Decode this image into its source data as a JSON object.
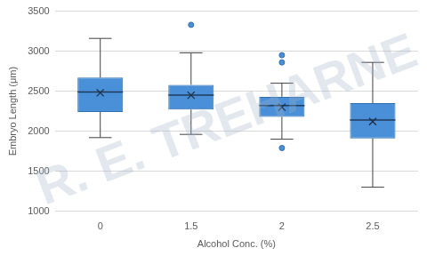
{
  "chart_data": {
    "type": "box",
    "x_label": "Alcohol Conc. (%)",
    "y_label": "Embryo Length (μm)",
    "watermark": "R. E. TREHARNE",
    "categories": [
      "0",
      "1.5",
      "2",
      "2.5"
    ],
    "min": [
      1920,
      1960,
      1900,
      1300
    ],
    "q1": [
      2240,
      2270,
      2180,
      1910
    ],
    "median": [
      2490,
      2450,
      2320,
      2140
    ],
    "q3": [
      2670,
      2580,
      2430,
      2350
    ],
    "max": [
      3160,
      2980,
      2600,
      2860
    ],
    "mean": [
      2480,
      2450,
      2300,
      2120
    ],
    "outliers": [
      [],
      [
        3330
      ],
      [
        2950,
        2860,
        1790
      ],
      []
    ],
    "color": "#4a90d9",
    "ylim": [
      1000,
      3500
    ],
    "yticks": [
      1000,
      1500,
      2000,
      2500,
      3000,
      3500
    ],
    "grid": true
  }
}
